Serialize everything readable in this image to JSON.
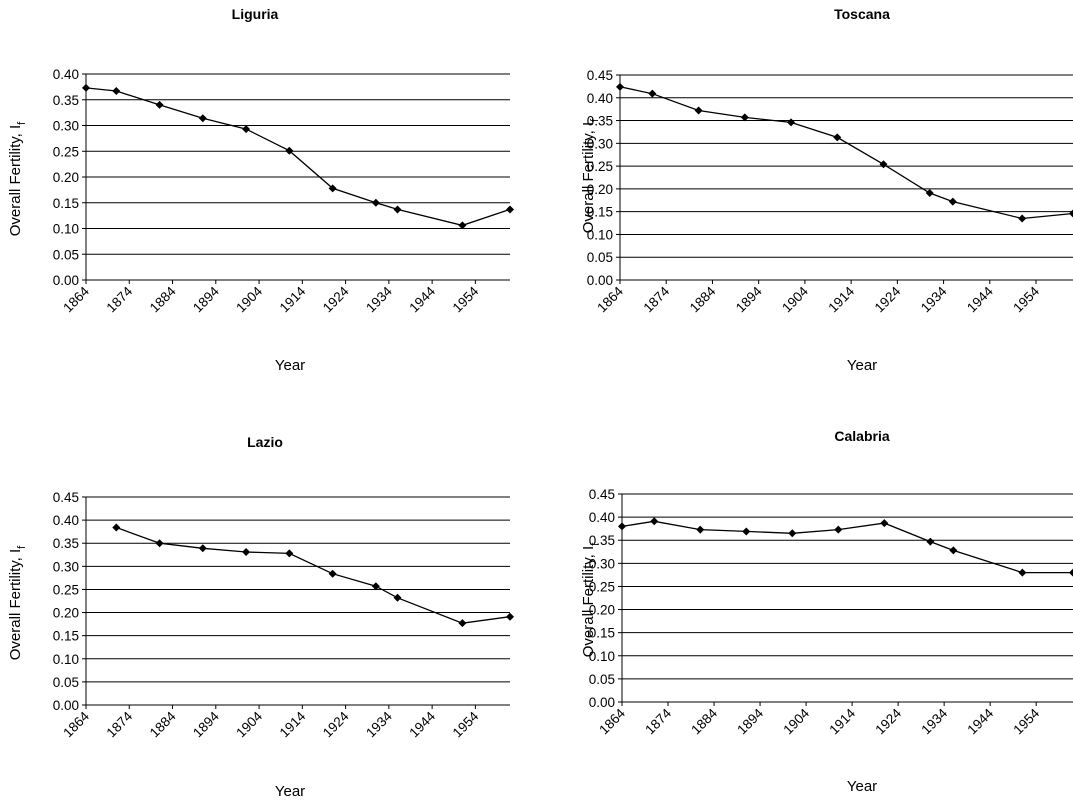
{
  "chart_data": [
    {
      "type": "line",
      "title": "Liguria",
      "xlabel": "Year",
      "ylabel": "Overall Fertility, I",
      "ylabel_sub": "f",
      "x_ticks": [
        "1864",
        "1874",
        "1884",
        "1894",
        "1904",
        "1914",
        "1924",
        "1934",
        "1944",
        "1954"
      ],
      "xlim": [
        1864,
        1962
      ],
      "ylim": [
        0,
        0.4
      ],
      "y_ticks": [
        "0.00",
        "0.05",
        "0.10",
        "0.15",
        "0.20",
        "0.25",
        "0.30",
        "0.35",
        "0.40"
      ],
      "grid": "horizontal",
      "series": [
        {
          "x": [
            1864,
            1871,
            1881,
            1891,
            1901,
            1911,
            1921,
            1931,
            1936,
            1951,
            1962
          ],
          "y": [
            0.373,
            0.367,
            0.34,
            0.314,
            0.293,
            0.251,
            0.178,
            0.15,
            0.137,
            0.106,
            0.137
          ]
        }
      ]
    },
    {
      "type": "line",
      "title": "Toscana",
      "xlabel": "Year",
      "ylabel": "Overall Fertility, I",
      "ylabel_sub": "f",
      "x_ticks": [
        "1864",
        "1874",
        "1884",
        "1894",
        "1904",
        "1914",
        "1924",
        "1934",
        "1944",
        "1954"
      ],
      "xlim": [
        1864,
        1962
      ],
      "ylim": [
        0,
        0.45
      ],
      "y_ticks": [
        "0.00",
        "0.05",
        "0.10",
        "0.15",
        "0.20",
        "0.25",
        "0.30",
        "0.35",
        "0.40",
        "0.45"
      ],
      "grid": "horizontal",
      "series": [
        {
          "x": [
            1864,
            1871,
            1881,
            1891,
            1901,
            1911,
            1921,
            1931,
            1936,
            1951,
            1962
          ],
          "y": [
            0.424,
            0.409,
            0.372,
            0.357,
            0.346,
            0.313,
            0.254,
            0.191,
            0.172,
            0.135,
            0.146
          ]
        }
      ]
    },
    {
      "type": "line",
      "title": "Lazio",
      "xlabel": "Year",
      "ylabel": "Overall Fertility, I",
      "ylabel_sub": "f",
      "x_ticks": [
        "1864",
        "1874",
        "1884",
        "1894",
        "1904",
        "1914",
        "1924",
        "1934",
        "1944",
        "1954"
      ],
      "xlim": [
        1864,
        1962
      ],
      "ylim": [
        0,
        0.45
      ],
      "y_ticks": [
        "0.00",
        "0.05",
        "0.10",
        "0.15",
        "0.20",
        "0.25",
        "0.30",
        "0.35",
        "0.40",
        "0.45"
      ],
      "grid": "horizontal",
      "series": [
        {
          "x": [
            1871,
            1881,
            1891,
            1901,
            1911,
            1921,
            1931,
            1936,
            1951,
            1962
          ],
          "y": [
            0.384,
            0.35,
            0.339,
            0.331,
            0.328,
            0.284,
            0.257,
            0.232,
            0.177,
            0.191
          ]
        }
      ]
    },
    {
      "type": "line",
      "title": "Calabria",
      "xlabel": "Year",
      "ylabel": "Overall Fertility, I",
      "ylabel_sub": "f",
      "x_ticks": [
        "1864",
        "1874",
        "1884",
        "1894",
        "1904",
        "1914",
        "1924",
        "1934",
        "1944",
        "1954"
      ],
      "xlim": [
        1864,
        1962
      ],
      "ylim": [
        0,
        0.45
      ],
      "y_ticks": [
        "0.00",
        "0.05",
        "0.10",
        "0.15",
        "0.20",
        "0.25",
        "0.30",
        "0.35",
        "0.40",
        "0.45"
      ],
      "grid": "horizontal",
      "series": [
        {
          "x": [
            1864,
            1871,
            1881,
            1891,
            1901,
            1911,
            1921,
            1931,
            1936,
            1951,
            1962
          ],
          "y": [
            0.38,
            0.391,
            0.373,
            0.369,
            0.365,
            0.373,
            0.387,
            0.347,
            0.328,
            0.28,
            0.28
          ]
        }
      ]
    }
  ],
  "colors": {
    "line": "#000000",
    "marker": "#000000",
    "grid": "#000000",
    "background": "#ffffff"
  }
}
